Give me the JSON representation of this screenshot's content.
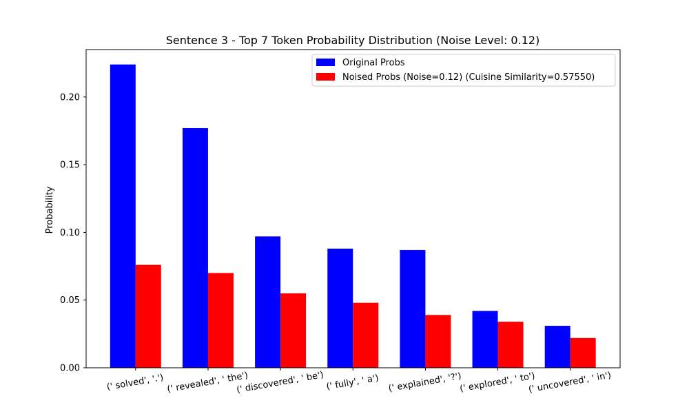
{
  "chart_data": {
    "type": "bar",
    "title": "Sentence 3 - Top 7 Token Probability Distribution (Noise Level: 0.12)",
    "xlabel": "",
    "ylabel": "Probability",
    "ylim": [
      0,
      0.235
    ],
    "yticks": [
      0.0,
      0.05,
      0.1,
      0.15,
      0.2
    ],
    "ytick_labels": [
      "0.00",
      "0.05",
      "0.10",
      "0.15",
      "0.20"
    ],
    "grid": false,
    "legend_position": "top-right",
    "categories": [
      "(' solved', '.')",
      "(' revealed', ' the')",
      "(' discovered', ' be')",
      "(' fully', ' a')",
      "(' explained', '?')",
      "(' explored', ' to')",
      "(' uncovered', ' in')"
    ],
    "series": [
      {
        "name": "Original Probs",
        "color": "#0000ff",
        "values": [
          0.224,
          0.177,
          0.097,
          0.088,
          0.087,
          0.042,
          0.031
        ]
      },
      {
        "name": "Noised Probs (Noise=0.12) (Cuisine Similarity=0.57550)",
        "color": "#ff0000",
        "values": [
          0.076,
          0.07,
          0.055,
          0.048,
          0.039,
          0.034,
          0.022
        ]
      }
    ]
  }
}
